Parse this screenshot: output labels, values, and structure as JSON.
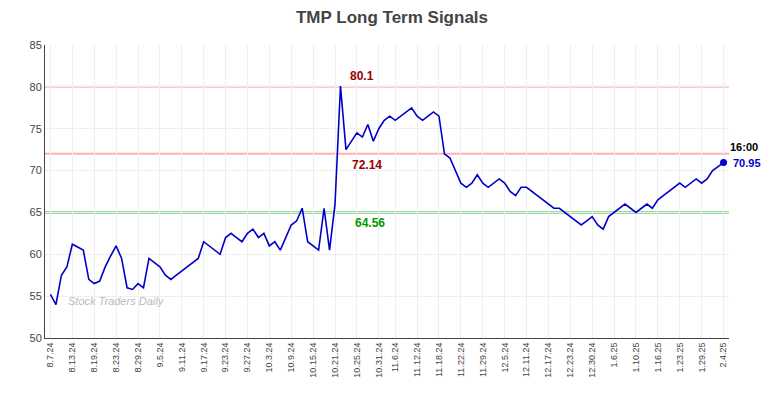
{
  "chart_data": {
    "type": "line",
    "title": "TMP Long Term Signals",
    "categories": [
      "8.7.24",
      null,
      null,
      null,
      "8.13.24",
      null,
      null,
      null,
      "8.19.24",
      null,
      null,
      null,
      "8.23.24",
      null,
      null,
      null,
      "8.29.24",
      null,
      null,
      null,
      "9.5.24",
      null,
      null,
      null,
      "9.11.24",
      null,
      null,
      null,
      "9.17.24",
      null,
      null,
      null,
      "9.23.24",
      null,
      null,
      null,
      "9.27.24",
      null,
      null,
      null,
      "10.3.24",
      null,
      null,
      null,
      "10.9.24",
      null,
      null,
      null,
      "10.15.24",
      null,
      null,
      null,
      "10.21.24",
      null,
      null,
      null,
      "10.25.24",
      null,
      null,
      null,
      "10.31.24",
      null,
      null,
      "11.6.24",
      null,
      null,
      null,
      "11.12.24",
      null,
      null,
      null,
      "11.18.24",
      null,
      null,
      null,
      "11.22.24",
      null,
      null,
      null,
      "11.29.24",
      null,
      null,
      null,
      "12.5.24",
      null,
      null,
      null,
      "12.11.24",
      null,
      null,
      null,
      "12.17.24",
      null,
      null,
      null,
      "12.23.24",
      null,
      null,
      null,
      "12.30.24",
      null,
      null,
      null,
      "1.6.25",
      null,
      null,
      null,
      "1.10.25",
      null,
      null,
      null,
      "1.16.25",
      null,
      null,
      null,
      "1.23.25",
      null,
      null,
      null,
      "1.29.25",
      null,
      null,
      null,
      "2.4.25"
    ],
    "values": [
      55.2,
      54.0,
      57.5,
      58.5,
      61.2,
      60.8,
      60.5,
      57.0,
      56.5,
      56.8,
      58.5,
      59.8,
      61.0,
      59.5,
      56.0,
      55.8,
      56.5,
      56.0,
      59.5,
      59.0,
      58.5,
      57.5,
      57.0,
      57.5,
      58.0,
      58.5,
      59.0,
      59.5,
      61.5,
      61.0,
      60.5,
      60.0,
      62.0,
      62.5,
      62.0,
      61.5,
      62.5,
      63.0,
      62.0,
      62.5,
      61.0,
      61.5,
      60.5,
      62.0,
      63.5,
      64.0,
      65.5,
      61.5,
      61.0,
      60.5,
      65.5,
      60.5,
      66.0,
      80.1,
      72.5,
      73.5,
      74.5,
      74.0,
      75.5,
      73.5,
      75.0,
      76.0,
      76.5,
      76.0,
      76.5,
      77.0,
      77.5,
      76.5,
      76.0,
      76.5,
      77.0,
      76.5,
      72.0,
      71.5,
      70.0,
      68.5,
      68.0,
      68.5,
      69.5,
      68.5,
      68.0,
      68.5,
      69.0,
      68.5,
      67.5,
      67.0,
      68.0,
      68.0,
      67.5,
      67.0,
      66.5,
      66.0,
      65.5,
      65.5,
      65.0,
      64.5,
      64.0,
      63.5,
      64.0,
      64.5,
      63.5,
      63.0,
      64.5,
      65.0,
      65.5,
      66.0,
      65.5,
      65.0,
      65.5,
      66.0,
      65.5,
      66.5,
      67.0,
      67.5,
      68.0,
      68.5,
      68.0,
      68.5,
      69.0,
      68.5,
      69.0,
      70.0,
      70.5,
      70.95
    ],
    "color": "#0000cc",
    "ylim": [
      50,
      85
    ],
    "yticks": [
      50,
      55,
      60,
      65,
      70,
      75,
      80,
      85
    ],
    "grid": true,
    "reference_lines": [
      {
        "value": 80.0,
        "color": "#ffb0b0"
      },
      {
        "value": 72.0,
        "color": "#ffb0b0"
      },
      {
        "value": 65.0,
        "color": "#33bb33"
      }
    ],
    "annotations": [
      {
        "text": "80.1",
        "color": "#990000"
      },
      {
        "text": "72.14",
        "color": "#990000"
      },
      {
        "text": "64.56",
        "color": "#009900"
      },
      {
        "text": "16:00",
        "color": "#000000"
      },
      {
        "text": "70.95",
        "color": "#0000cc"
      }
    ],
    "watermark": {
      "text": "Stock Traders Daily",
      "color": "#bbbbbb"
    },
    "last_marker_color": "#0000cc",
    "last_line_color": "#888888"
  }
}
